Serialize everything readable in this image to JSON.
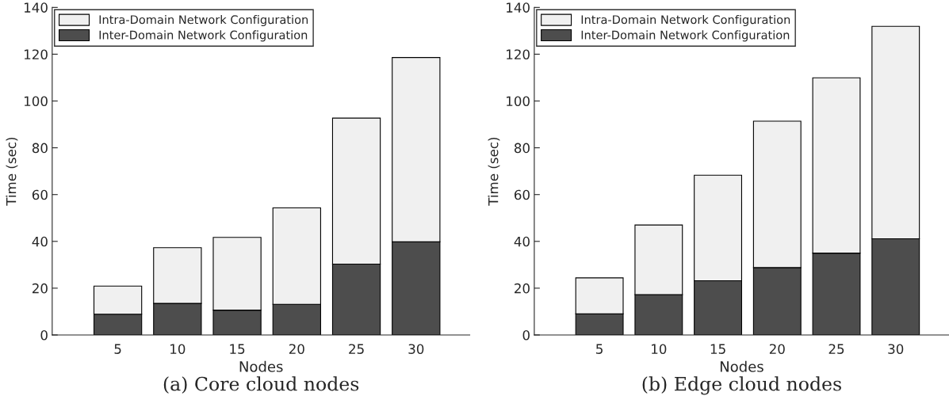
{
  "chart_data": [
    {
      "type": "bar",
      "title": "(a) Core cloud nodes",
      "xlabel": "Nodes",
      "ylabel": "Time (sec)",
      "categories": [
        "5",
        "10",
        "15",
        "20",
        "25",
        "30"
      ],
      "stacked": true,
      "ylim": [
        0,
        140
      ],
      "yticks": [
        0,
        20,
        40,
        60,
        80,
        100,
        120,
        140
      ],
      "legend": "top left",
      "grid": false,
      "series": [
        {
          "name": "Inter-Domain Network Configuration",
          "color": "#4d4d4d",
          "values": [
            8.9,
            13.5,
            10.6,
            13.1,
            30.3,
            39.8
          ]
        },
        {
          "name": "Intra-Domain Network Configuration",
          "color": "#f0f0f0",
          "values": [
            12.0,
            23.8,
            31.1,
            41.2,
            62.4,
            78.8
          ]
        }
      ]
    },
    {
      "type": "bar",
      "title": "(b) Edge cloud nodes",
      "xlabel": "Nodes",
      "ylabel": "Time (sec)",
      "categories": [
        "5",
        "10",
        "15",
        "20",
        "25",
        "30"
      ],
      "stacked": true,
      "ylim": [
        0,
        140
      ],
      "yticks": [
        0,
        20,
        40,
        60,
        80,
        100,
        120,
        140
      ],
      "legend": "top left",
      "grid": false,
      "series": [
        {
          "name": "Inter-Domain Network Configuration",
          "color": "#4d4d4d",
          "values": [
            9.0,
            17.2,
            23.2,
            28.8,
            35.0,
            41.1
          ]
        },
        {
          "name": "Intra-Domain Network Configuration",
          "color": "#f0f0f0",
          "values": [
            15.4,
            29.8,
            45.1,
            62.6,
            74.9,
            90.8
          ]
        }
      ]
    }
  ]
}
